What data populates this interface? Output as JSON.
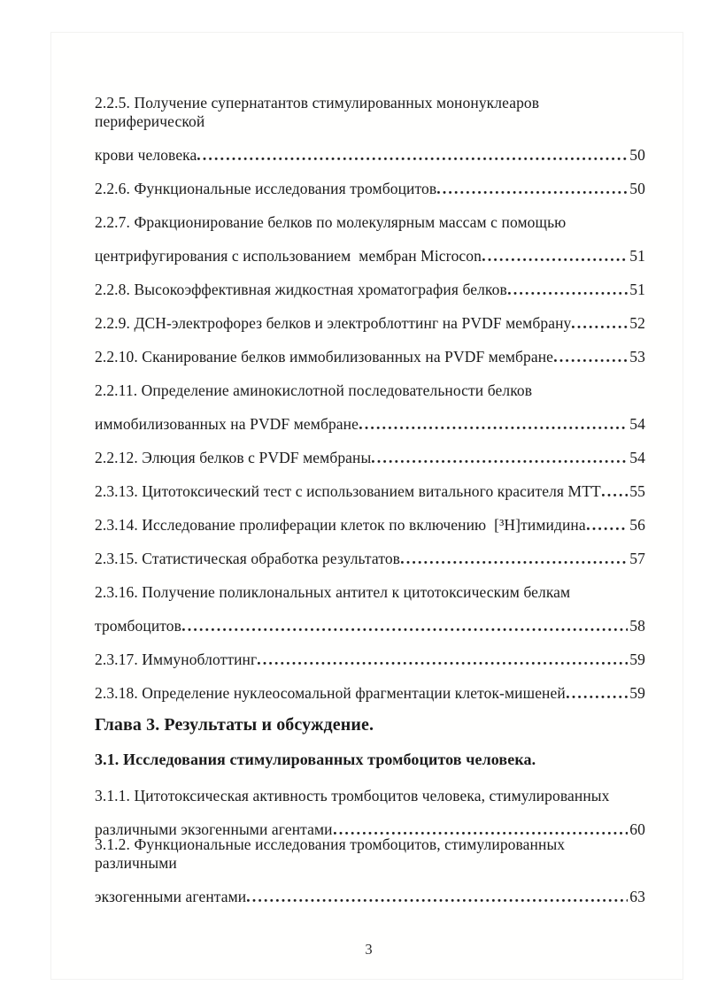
{
  "document": {
    "kind": "dissertation-table-of-contents",
    "page_number": "3",
    "rows": [
      {
        "text": "2.2.5. Получение супернатантов стимулированных мононуклеаров периферической"
      },
      {
        "text": "крови человека",
        "page": "50"
      },
      {
        "text": "2.2.6. Функциональные исследования тромбоцитов",
        "page": "50"
      },
      {
        "text": "2.2.7. Фракционирование белков по молекулярным массам с помощью"
      },
      {
        "text": "центрифугирования с использованием  мембран Microcon",
        "page": "51"
      },
      {
        "text": "2.2.8. Высокоэффективная жидкостная хроматография белков",
        "page": "51"
      },
      {
        "text": "2.2.9. ДСН-электрофорез белков и электроблоттинг на PVDF мембрану",
        "page": "52"
      },
      {
        "text": "2.2.10. Сканирование белков иммобилизованных на PVDF мембране",
        "page": "53"
      },
      {
        "text": "2.2.11. Определение аминокислотной последовательности белков"
      },
      {
        "text": "иммобилизованных на PVDF мембране",
        "page": "54"
      },
      {
        "text": "2.2.12. Элюция белков с PVDF мембраны",
        "page": "54"
      },
      {
        "text": "2.3.13. Цитотоксический тест с использованием витального красителя МТТ",
        "page": "55"
      },
      {
        "text": "2.3.14. Исследование пролиферации клеток по включению  [³Н]тимидина",
        "page": "56"
      },
      {
        "text": "2.3.15. Статистическая обработка результатов",
        "page": "57"
      },
      {
        "text": "2.3.16. Получение поликлональных антител к цитотоксическим белкам"
      },
      {
        "text": "тромбоцитов",
        "page": "58"
      },
      {
        "text": "2.3.17. Иммуноблоттинг",
        "page": "59"
      },
      {
        "text": "2.3.18. Определение нуклеосомальной фрагментации клеток-мишеней",
        "page": "59"
      },
      {
        "text": "Глава 3. Результаты и обсуждение.",
        "style": "chapter"
      },
      {
        "text": "3.1. Исследования стимулированных тромбоцитов человека.",
        "style": "section"
      },
      {
        "text": "3.1.1. Цитотоксическая активность тромбоцитов человека, стимулированных"
      },
      {
        "text": "различными экзогенными агентами",
        "page": "60"
      },
      {
        "text": "3.1.2. Функциональные исследования тромбоцитов, стимулированных различными"
      },
      {
        "text": "экзогенными агентами",
        "page": "63"
      }
    ]
  }
}
